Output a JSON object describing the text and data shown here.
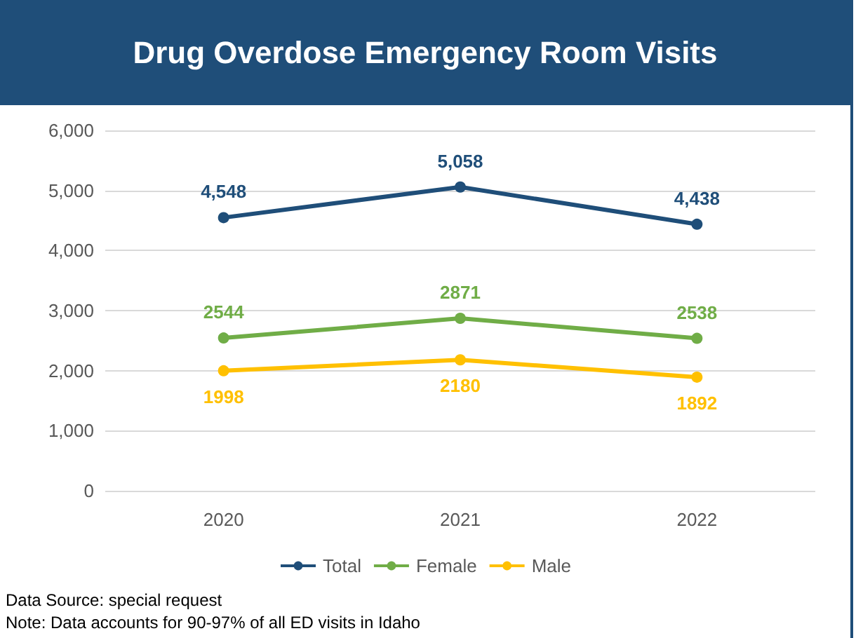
{
  "chart_data": {
    "type": "line",
    "title": "Drug Overdose Emergency Room Visits",
    "categories": [
      "2020",
      "2021",
      "2022"
    ],
    "series": [
      {
        "name": "Total",
        "color": "#1f4e79",
        "values": [
          4548,
          5058,
          4438
        ],
        "value_labels": [
          "4,548",
          "5,058",
          "4,438"
        ]
      },
      {
        "name": "Female",
        "color": "#70ad47",
        "values": [
          2544,
          2871,
          2538
        ],
        "value_labels": [
          "2544",
          "2871",
          "2538"
        ]
      },
      {
        "name": "Male",
        "color": "#ffc000",
        "values": [
          1998,
          2180,
          1892
        ],
        "value_labels": [
          "1998",
          "2180",
          "1892"
        ]
      }
    ],
    "ylim": [
      0,
      6000
    ],
    "yticks": [
      0,
      {
        "value": 1000,
        "label": "1,000"
      },
      {
        "value": 2000,
        "label": "2,000"
      },
      {
        "value": 3000,
        "label": "3,000"
      },
      {
        "value": 4000,
        "label": "4,000"
      },
      {
        "value": 5000,
        "label": "5,000"
      },
      {
        "value": 6000,
        "label": "6,000"
      }
    ],
    "grid": "y",
    "legend": "bottom",
    "marker": "circle",
    "line_style": "solid",
    "annotations": [
      "Data Source: special request",
      "Note: Data accounts for 90-97% of all ED visits in Idaho"
    ]
  }
}
